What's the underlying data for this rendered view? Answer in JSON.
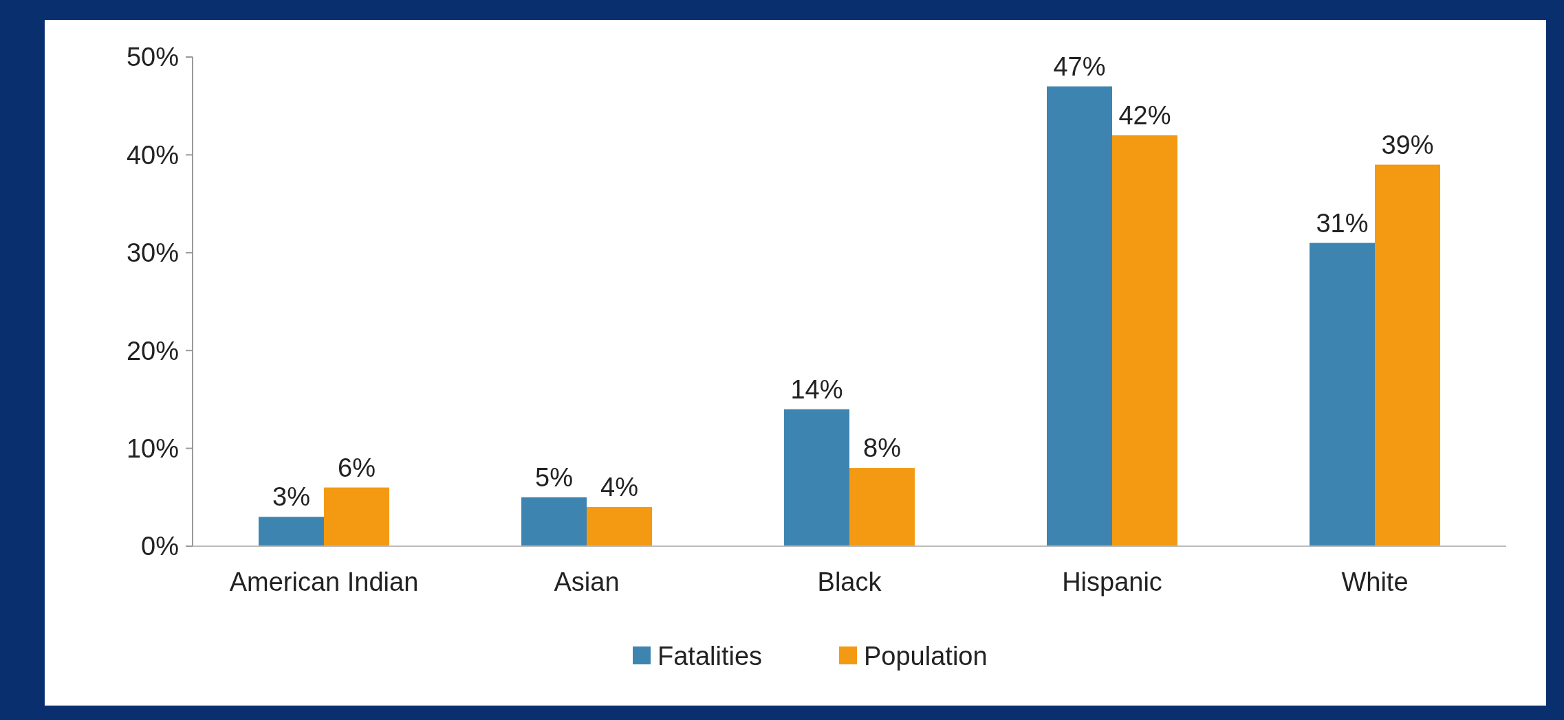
{
  "chart_data": {
    "type": "bar",
    "categories": [
      "American Indian",
      "Asian",
      "Black",
      "Hispanic",
      "White"
    ],
    "series": [
      {
        "name": "Fatalities",
        "color": "#3d85b0",
        "values": [
          3,
          5,
          14,
          47,
          31
        ],
        "value_labels": [
          "3%",
          "5%",
          "14%",
          "47%",
          "31%"
        ]
      },
      {
        "name": "Population",
        "color": "#f39a12",
        "values": [
          6,
          4,
          8,
          42,
          39
        ],
        "value_labels": [
          "6%",
          "4%",
          "8%",
          "42%",
          "39%"
        ]
      }
    ],
    "ylim": [
      0,
      50
    ],
    "yticks": [
      {
        "value": 0,
        "label": "0%"
      },
      {
        "value": 10,
        "label": "10%"
      },
      {
        "value": 20,
        "label": "20%"
      },
      {
        "value": 30,
        "label": "30%"
      },
      {
        "value": 40,
        "label": "40%"
      },
      {
        "value": 50,
        "label": "50%"
      }
    ],
    "grid": false,
    "legend": "bottom"
  }
}
